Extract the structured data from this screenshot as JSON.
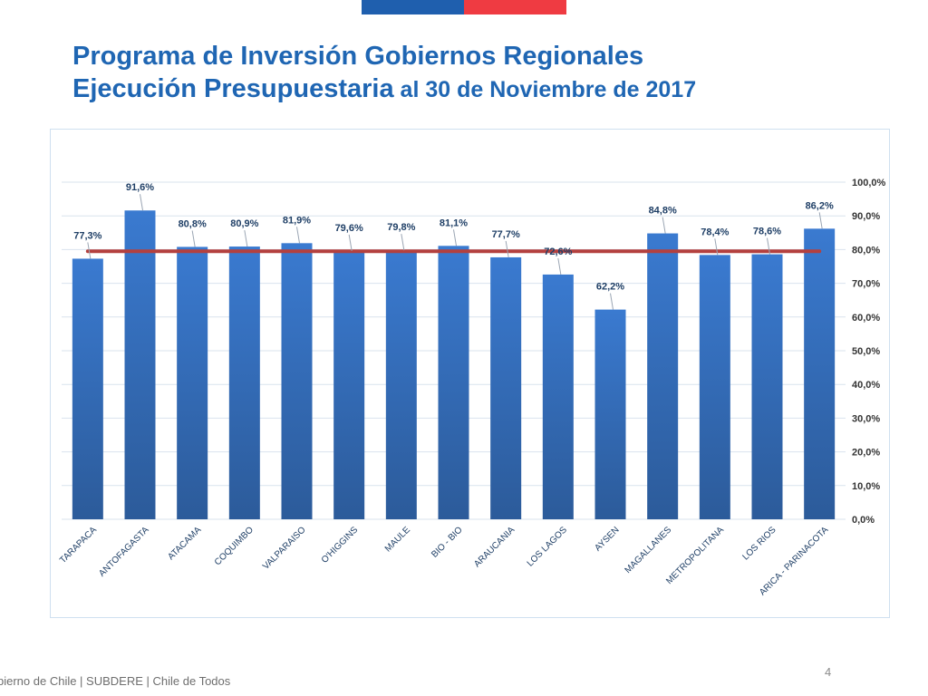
{
  "header": {
    "title_line1": "Programa de Inversión Gobiernos Regionales",
    "title_line2_bold": "Ejecución Presupuestaria",
    "title_line2_rest": " al 30 de Noviembre de 2017"
  },
  "colors": {
    "bar": "#3775c5",
    "bar_dark": "#2c5c9c",
    "avg_line": "#b4403e",
    "title": "#1f66b3",
    "flag_blue": "#1f5fae",
    "flag_red": "#ef3b42"
  },
  "chart_data": {
    "type": "bar",
    "categories": [
      "TARAPACA",
      "ANTOFAGASTA",
      "ATACAMA",
      "COQUIMBO",
      "VALPARAISO",
      "O'HIGGINS",
      "MAULE",
      "BIO - BIO",
      "ARAUCANIA",
      "LOS LAGOS",
      "AYSEN",
      "MAGALLANES",
      "METROPOLITANA",
      "LOS RIOS",
      "ARICA - PARINACOTA"
    ],
    "values": [
      77.3,
      91.6,
      80.8,
      80.9,
      81.9,
      79.6,
      79.8,
      81.1,
      77.7,
      72.6,
      62.2,
      84.8,
      78.4,
      78.6,
      86.2
    ],
    "data_labels": [
      "77,3%",
      "91,6%",
      "80,8%",
      "80,9%",
      "81,9%",
      "79,6%",
      "79,8%",
      "81,1%",
      "77,7%",
      "72,6%",
      "62,2%",
      "84,8%",
      "78,4%",
      "78,6%",
      "86,2%"
    ],
    "y_ticks": [
      0,
      10,
      20,
      30,
      40,
      50,
      60,
      70,
      80,
      90,
      100
    ],
    "y_tick_labels": [
      "0,0%",
      "10,0%",
      "20,0%",
      "30,0%",
      "40,0%",
      "50,0%",
      "60,0%",
      "70,0%",
      "80,0%",
      "90,0%",
      "100,0%"
    ],
    "ylim": [
      0,
      100
    ],
    "y_axis_side": "right",
    "reference_line": 79.5,
    "grid": true
  },
  "footer": {
    "text": "bierno de Chile | SUBDERE | Chile de Todos",
    "page_number": "4"
  }
}
